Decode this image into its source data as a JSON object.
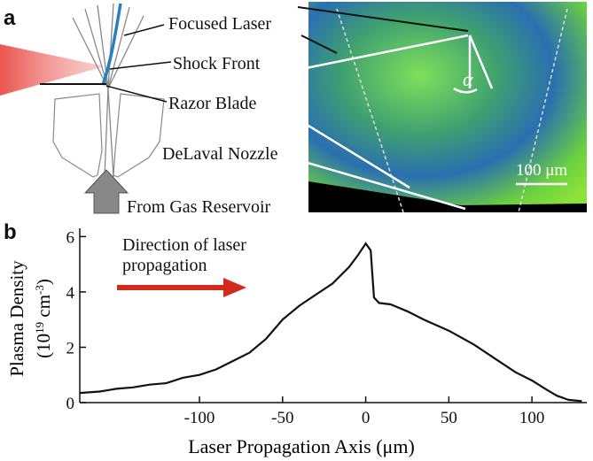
{
  "panel_a": {
    "label": "a",
    "labels": [
      "Focused Laser",
      "Shock Front",
      "Razor Blade",
      "DeLaval Nozzle",
      "From Gas Reservoir"
    ],
    "angle_label": "α",
    "scale_bar": "100 μm"
  },
  "chart_data": {
    "type": "line",
    "panel_label": "b",
    "annotation": [
      "Direction of laser",
      "propagation"
    ],
    "xlabel": "Laser Propagation Axis (μm)",
    "ylabel": "Plasma Density",
    "ylabel_units": {
      "open": "(10",
      "exp": "19",
      "unit": " cm",
      "unit_exp": "-3",
      "close": ")"
    },
    "x": [
      -172,
      -160,
      -150,
      -140,
      -130,
      -120,
      -110,
      -100,
      -90,
      -80,
      -70,
      -60,
      -50,
      -40,
      -30,
      -20,
      -10,
      -5,
      0,
      3,
      5,
      8,
      15,
      25,
      35,
      50,
      65,
      80,
      90,
      100,
      108,
      115,
      122,
      130
    ],
    "values": [
      0.35,
      0.4,
      0.5,
      0.55,
      0.65,
      0.7,
      0.9,
      1.0,
      1.2,
      1.5,
      1.8,
      2.3,
      3.0,
      3.5,
      3.9,
      4.3,
      4.9,
      5.3,
      5.75,
      5.5,
      3.8,
      3.6,
      3.55,
      3.3,
      3.0,
      2.6,
      2.1,
      1.5,
      1.1,
      0.8,
      0.5,
      0.25,
      0.1,
      0.05
    ],
    "color": "#111111",
    "xlim": [
      -172,
      133
    ],
    "ylim": [
      0,
      6.3
    ],
    "xticks": [
      -100,
      -50,
      0,
      50,
      100
    ],
    "yticks": [
      0,
      2,
      4,
      6
    ]
  }
}
